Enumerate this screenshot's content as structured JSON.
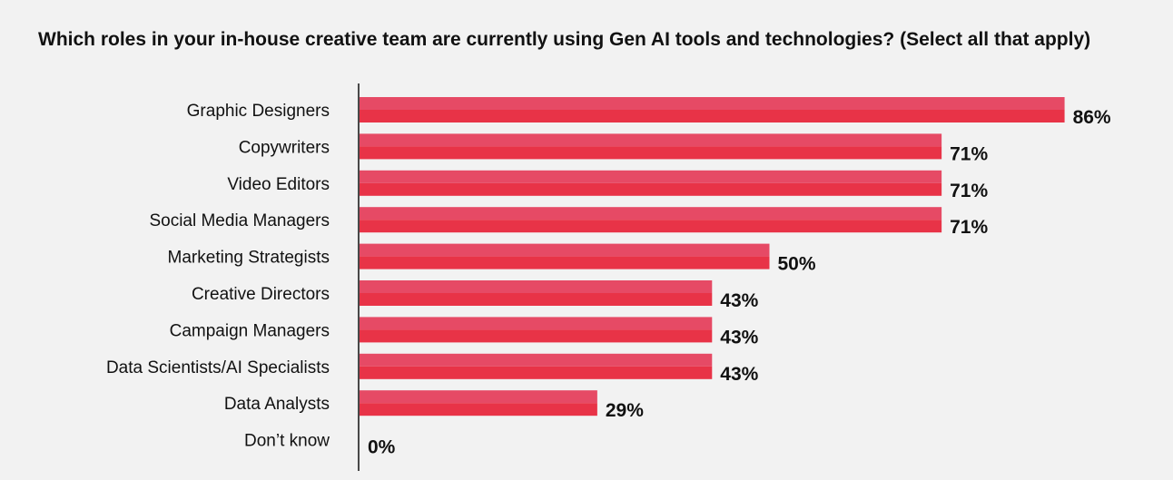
{
  "chart_data": {
    "type": "bar",
    "orientation": "horizontal",
    "title": "Which roles in your in-house creative team are currently using Gen AI tools and technologies? (Select all that apply)",
    "categories": [
      "Graphic Designers",
      "Copywriters",
      "Video Editors",
      "Social Media Managers",
      "Marketing Strategists",
      "Creative Directors",
      "Campaign Managers",
      "Data Scientists/AI Specialists",
      "Data Analysts",
      "Don’t know"
    ],
    "values": [
      86,
      71,
      71,
      71,
      50,
      43,
      43,
      43,
      29,
      0
    ],
    "value_labels": [
      "86%",
      "71%",
      "71%",
      "71%",
      "50%",
      "43%",
      "43%",
      "43%",
      "29%",
      "0%"
    ],
    "unit": "%",
    "xlim": [
      0,
      100
    ],
    "grid": false,
    "colors": {
      "bar_top": "#e64a65",
      "bar_bottom": "#e83347",
      "background": "#f2f2f2",
      "axis": "#111111"
    }
  }
}
